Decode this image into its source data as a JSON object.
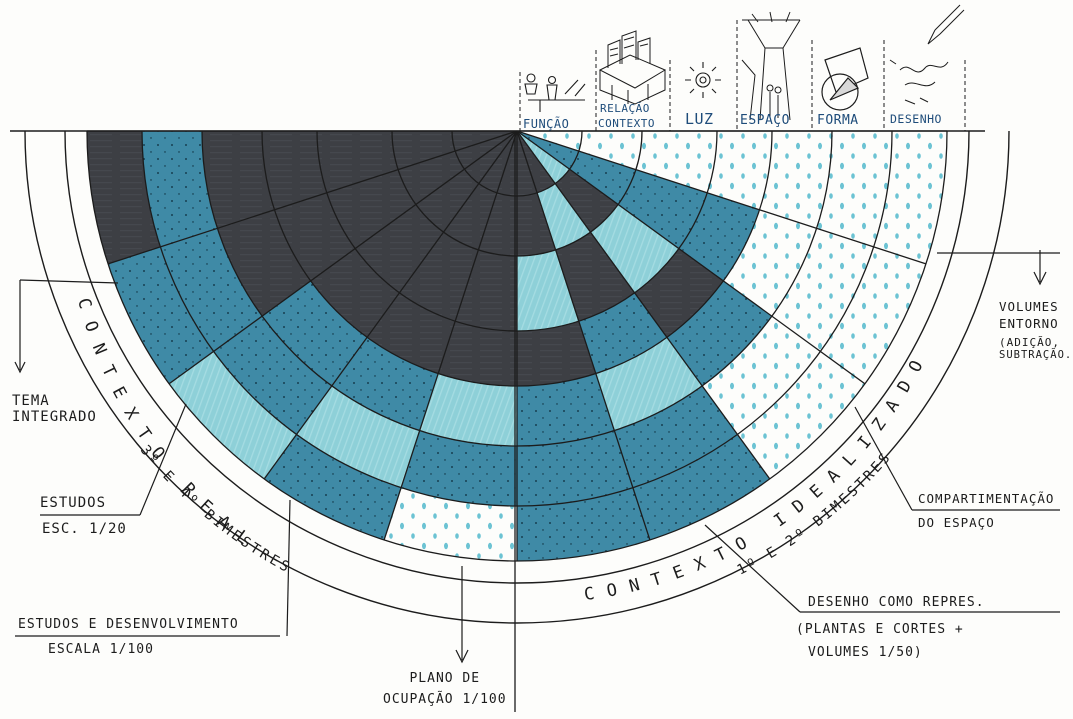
{
  "categories": [
    {
      "id": "funcao",
      "label": "FUNÇÃO",
      "icon": "people-function-icon"
    },
    {
      "id": "relacao",
      "label": "RELAÇÃO",
      "label2": "CONTEXTO",
      "icon": "city-buildings-icon"
    },
    {
      "id": "luz",
      "label": "LUZ",
      "icon": "sun-light-icon"
    },
    {
      "id": "espaco",
      "label": "ESPAÇO",
      "icon": "interior-space-icon"
    },
    {
      "id": "forma",
      "label": "FORMA",
      "icon": "geometric-form-icon"
    },
    {
      "id": "desenho",
      "label": "DESENHO",
      "icon": "pen-drawing-icon"
    }
  ],
  "arc_labels": {
    "contexto_real": "CONTEXTO REAL",
    "contexto_idealizado": "CONTEXTO IDEALIZADO",
    "bimestres_left_1": "3º",
    "bimestres_left_2": "E",
    "bimestres_left_3": "4º BIMESTRES",
    "bimestres_right_1": "1º",
    "bimestres_right_2": "E",
    "bimestres_right_3": "2º BIMESTRES"
  },
  "annotations": {
    "tema_integrado": [
      "TEMA",
      "INTEGRADO"
    ],
    "estudos": [
      "ESTUDOS",
      "ESC. 1/20"
    ],
    "estudos_desenvolvimento": [
      "ESTUDOS E DESENVOLVIMENTO",
      "ESCALA   1/100"
    ],
    "plano_ocupacao": [
      "PLANO  DE",
      "OCUPAÇÃO  1/100"
    ],
    "desenho_repres": [
      "DESENHO COMO REPRES.",
      "(PLANTAS E CORTES +",
      "VOLUMES 1/50)"
    ],
    "compartimentacao": [
      "COMPARTIMENTAÇÃO",
      "DO ESPAÇO"
    ],
    "volumes_entorno": [
      "VOLUMES",
      "ENTORNO",
      "(ADIÇÃO,",
      "SUBTRAÇÃO...)"
    ]
  },
  "colors": {
    "dark": "#3d3f44",
    "blue": "#3f8aa6",
    "light": "#8ed0d8",
    "white": "#ffffff",
    "ink": "#1c1c1c",
    "label_blue": "#1e4c7a"
  },
  "ring_fill_grid": [
    [
      "dark",
      "dark",
      "dark",
      "dark",
      "dark",
      "dark",
      "dark",
      "light",
      "blue",
      "white"
    ],
    [
      "dark",
      "dark",
      "dark",
      "dark",
      "dark",
      "dark",
      "light",
      "dark",
      "blue",
      "white"
    ],
    [
      "dark",
      "dark",
      "dark",
      "dark",
      "dark",
      "light",
      "dark",
      "light",
      "blue",
      "white"
    ],
    [
      "dark",
      "dark",
      "dark",
      "dark",
      "dark",
      "dark",
      "blue",
      "dark",
      "blue",
      "white"
    ],
    [
      "dark",
      "dark",
      "blue",
      "blue",
      "light",
      "blue",
      "light",
      "blue",
      "white",
      "white"
    ],
    [
      "blue",
      "blue",
      "blue",
      "light",
      "blue",
      "blue",
      "blue",
      "white",
      "white",
      "white"
    ],
    [
      "dark",
      "blue",
      "light",
      "blue",
      "white",
      "blue",
      "blue",
      "white",
      "white",
      "white"
    ]
  ]
}
